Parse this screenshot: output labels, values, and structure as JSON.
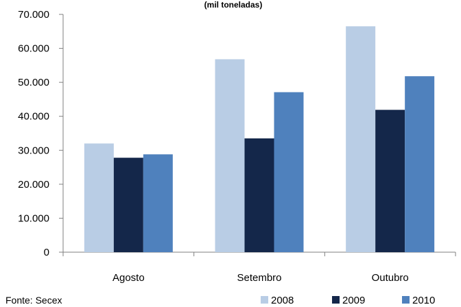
{
  "chart_data": {
    "type": "bar",
    "title": "(mil toneladas)",
    "categories": [
      "Agosto",
      "Setembro",
      "Outubro"
    ],
    "series": [
      {
        "name": "2008",
        "color": "#b9cde5",
        "values": [
          32000,
          56800,
          66500
        ]
      },
      {
        "name": "2009",
        "color": "#14274a",
        "values": [
          27800,
          33500,
          41900
        ]
      },
      {
        "name": "2010",
        "color": "#4f81bd",
        "values": [
          28800,
          47100,
          51800
        ]
      }
    ],
    "ylim": [
      0,
      70000
    ],
    "yticks": [
      "0",
      "10.000",
      "20.000",
      "30.000",
      "40.000",
      "50.000",
      "60.000",
      "70.000"
    ],
    "legend_position": "bottom-right",
    "grid": false
  },
  "source": "Fonte: Secex"
}
